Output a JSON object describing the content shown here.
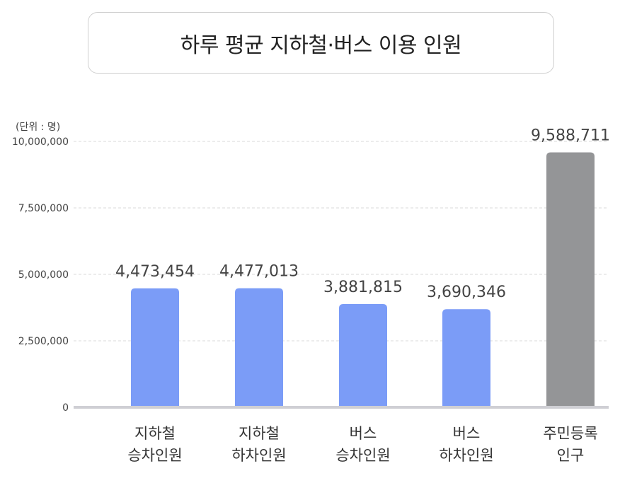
{
  "title": "하루 평균 지하철·버스 이용 인원",
  "chart_data": {
    "type": "bar",
    "title": "하루 평균 지하철·버스 이용 인원",
    "unit_label": "(단위 : 명)",
    "ylim": [
      0,
      10000000
    ],
    "yticks": [
      0,
      2500000,
      5000000,
      7500000,
      10000000
    ],
    "ytick_labels": [
      "0",
      "2,500,000",
      "5,000,000",
      "7,500,000",
      "10,000,000"
    ],
    "grid": true,
    "categories": [
      [
        "지하철",
        "승차인원"
      ],
      [
        "지하철",
        "하차인원"
      ],
      [
        "버스",
        "승차인원"
      ],
      [
        "버스",
        "하차인원"
      ],
      [
        "주민등록",
        "인구"
      ]
    ],
    "values": [
      4473454,
      4477013,
      3881815,
      3690346,
      9588711
    ],
    "value_labels": [
      "4,473,454",
      "4,477,013",
      "3,881,815",
      "3,690,346",
      "9,588,711"
    ],
    "colors": [
      "#7b9cf7",
      "#7b9cf7",
      "#7b9cf7",
      "#7b9cf7",
      "#949597"
    ]
  }
}
